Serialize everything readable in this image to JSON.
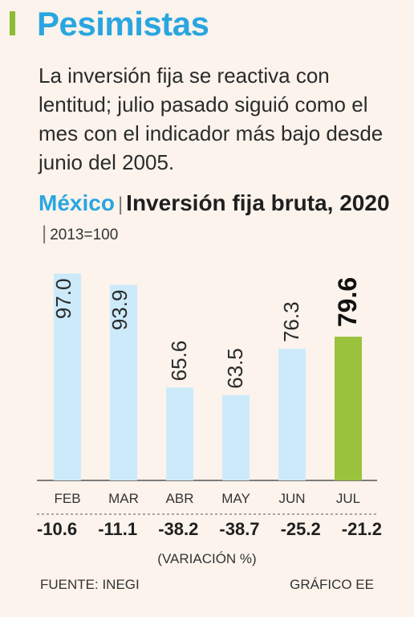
{
  "header": {
    "title": "Pesimistas",
    "subtitle": "La inversión fija se reactiva con lentitud; julio pasado siguió como el mes con el indicador más bajo desde junio del 2005.",
    "accent_color": "#8dbb32",
    "title_color": "#29a6e0"
  },
  "chart_title": {
    "country": "México",
    "title": "Inversión fija bruta, 2020",
    "base": "2013=100"
  },
  "chart_data": {
    "type": "bar",
    "categories": [
      "FEB",
      "MAR",
      "ABR",
      "MAY",
      "JUN",
      "JUL"
    ],
    "values": [
      97.0,
      93.9,
      65.6,
      63.5,
      76.3,
      79.6
    ],
    "value_labels": [
      "97.0",
      "93.9",
      "65.6",
      "63.5",
      "76.3",
      "79.6"
    ],
    "highlight_index": 5,
    "bar_color": "#cdeafb",
    "highlight_color": "#9bc23c",
    "ylim": [
      40,
      100
    ],
    "grid": false,
    "variation": [
      "-10.6",
      "-11.1",
      "-38.2",
      "-38.7",
      "-25.2",
      "-21.2"
    ],
    "variation_label": "(VARIACIÓN %)"
  },
  "footer": {
    "source": "FUENTE: INEGI",
    "credit": "GRÁFICO EE"
  }
}
